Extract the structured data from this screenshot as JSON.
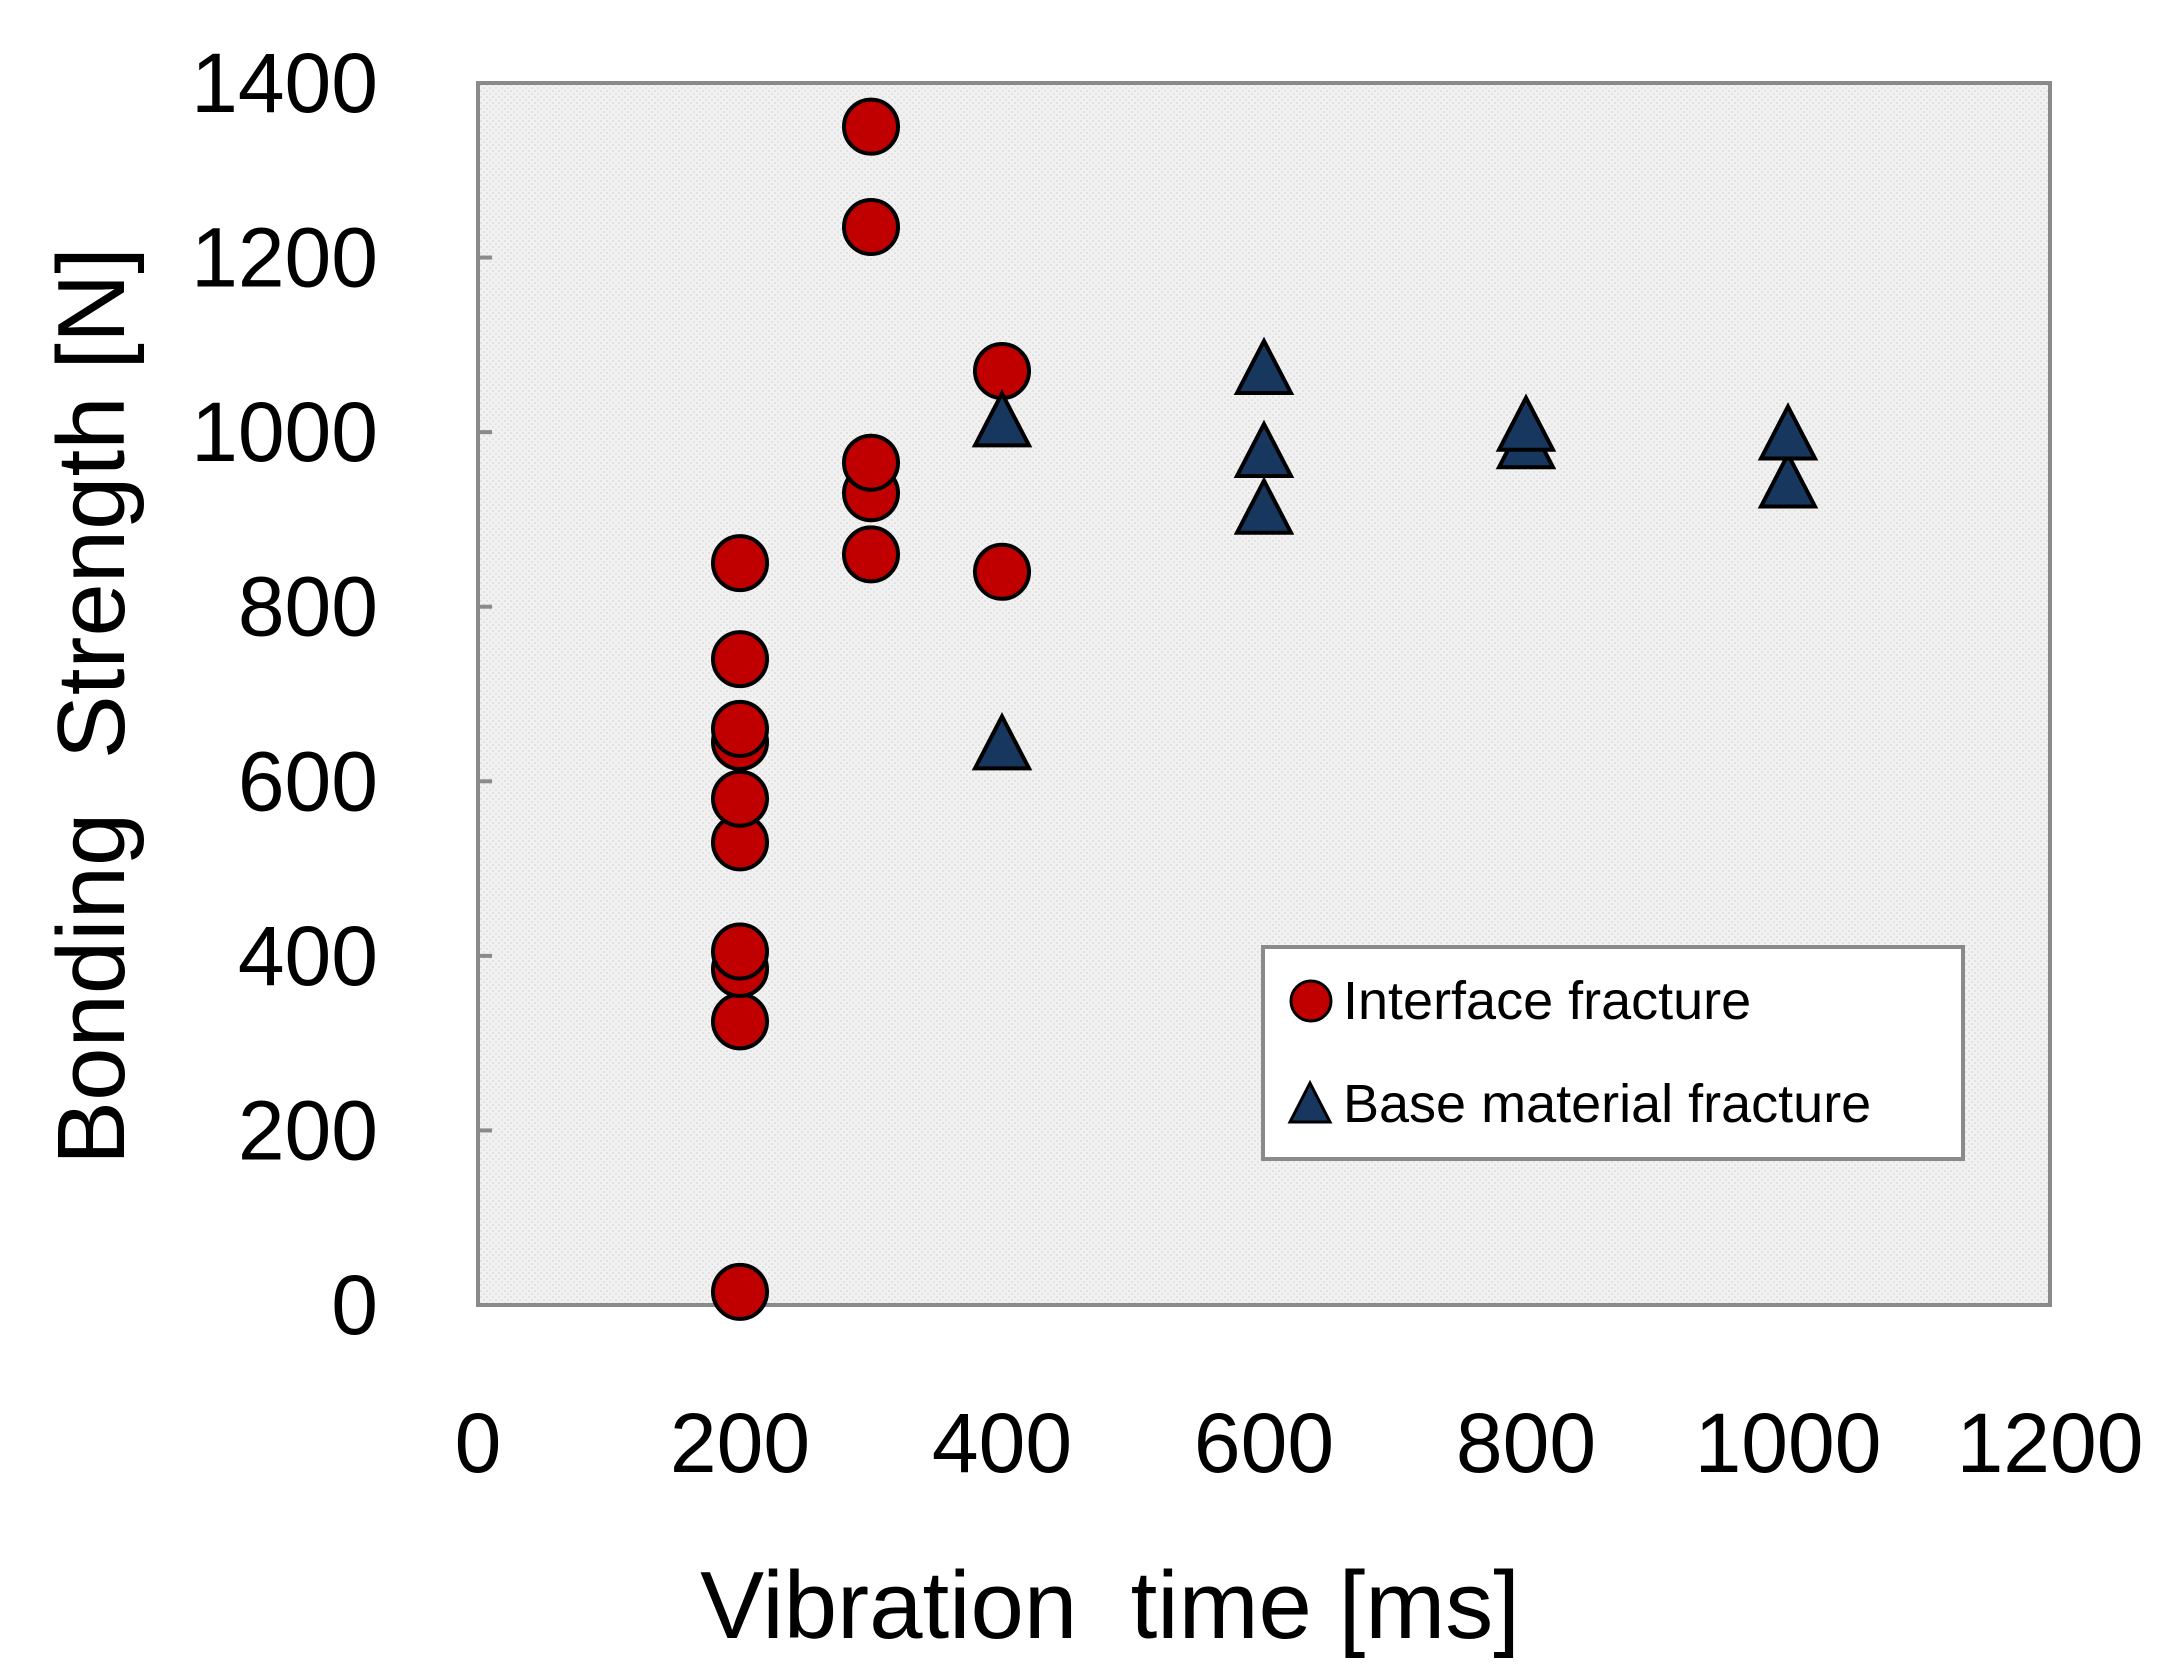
{
  "chart_data": {
    "type": "scatter",
    "title": "",
    "xlabel": "Vibration  time [ms]",
    "ylabel": "Bonding  Strength [N]",
    "xlim": [
      0,
      1200
    ],
    "ylim": [
      0,
      1400
    ],
    "xticks": [
      0,
      200,
      400,
      600,
      800,
      1000,
      1200
    ],
    "yticks": [
      0,
      200,
      400,
      600,
      800,
      1000,
      1200,
      1400
    ],
    "grid": false,
    "legend_position": "lower-right",
    "series": [
      {
        "name": "Interface fracture",
        "marker": "circle",
        "color": "#c00000",
        "points": [
          {
            "x": 200,
            "y": 15
          },
          {
            "x": 200,
            "y": 325
          },
          {
            "x": 200,
            "y": 385
          },
          {
            "x": 200,
            "y": 405
          },
          {
            "x": 200,
            "y": 530
          },
          {
            "x": 200,
            "y": 580
          },
          {
            "x": 200,
            "y": 645
          },
          {
            "x": 200,
            "y": 660
          },
          {
            "x": 200,
            "y": 740
          },
          {
            "x": 200,
            "y": 850
          },
          {
            "x": 300,
            "y": 860
          },
          {
            "x": 300,
            "y": 930
          },
          {
            "x": 300,
            "y": 965
          },
          {
            "x": 300,
            "y": 1235
          },
          {
            "x": 300,
            "y": 1350
          },
          {
            "x": 400,
            "y": 840
          },
          {
            "x": 400,
            "y": 1070
          }
        ]
      },
      {
        "name": "Base material fracture",
        "marker": "triangle",
        "color": "#17375e",
        "points": [
          {
            "x": 400,
            "y": 640
          },
          {
            "x": 400,
            "y": 1010
          },
          {
            "x": 600,
            "y": 910
          },
          {
            "x": 600,
            "y": 975
          },
          {
            "x": 600,
            "y": 1070
          },
          {
            "x": 800,
            "y": 985
          },
          {
            "x": 800,
            "y": 1005
          },
          {
            "x": 1000,
            "y": 940
          },
          {
            "x": 1000,
            "y": 995
          }
        ]
      }
    ]
  }
}
